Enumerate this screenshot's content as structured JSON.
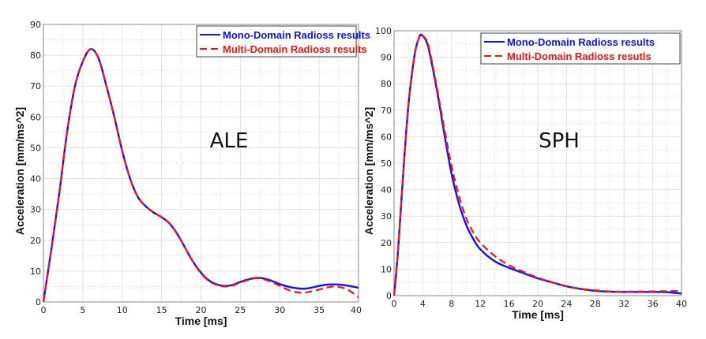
{
  "chart_data": [
    {
      "type": "line",
      "annotation": "ALE",
      "xlabel": "Time [ms]",
      "ylabel": "Acceleration [mm/ms^2]",
      "xlim": [
        0,
        40
      ],
      "ylim": [
        0,
        90
      ],
      "xticks": [
        0,
        5,
        10,
        15,
        20,
        25,
        30,
        35,
        40
      ],
      "yticks": [
        0,
        10,
        20,
        30,
        40,
        50,
        60,
        70,
        80,
        90
      ],
      "grid": true,
      "legend_position": "top-right",
      "series": [
        {
          "name": "Mono-Domain Radioss results",
          "color": "#1010ff",
          "style": "solid",
          "x": [
            0,
            1,
            2,
            3,
            4,
            5,
            6,
            7,
            8,
            9,
            10,
            11,
            12,
            13,
            14,
            15,
            16,
            17,
            18,
            19,
            20,
            21,
            22,
            23,
            24,
            25,
            26,
            27,
            28,
            29,
            30,
            31,
            32,
            33,
            34,
            35,
            36,
            37,
            38,
            39,
            40
          ],
          "y": [
            0,
            17,
            35,
            55,
            70,
            78,
            82,
            79,
            70,
            60,
            49,
            40,
            34,
            31,
            29,
            27.5,
            25.5,
            22,
            17.5,
            13,
            9.5,
            7,
            5.7,
            5.2,
            5.5,
            6.5,
            7.3,
            7.8,
            7.6,
            6.8,
            5.8,
            5,
            4.5,
            4.3,
            4.6,
            5.2,
            5.6,
            5.7,
            5.5,
            5.1,
            4.6
          ]
        },
        {
          "name": "Multi-Domain Radioss results",
          "color": "#ff1010",
          "style": "dashed",
          "x": [
            0,
            1,
            2,
            3,
            4,
            5,
            6,
            7,
            8,
            9,
            10,
            11,
            12,
            13,
            14,
            15,
            16,
            17,
            18,
            19,
            20,
            21,
            22,
            23,
            24,
            25,
            26,
            27,
            28,
            29,
            30,
            31,
            32,
            33,
            34,
            35,
            36,
            37,
            38,
            39,
            40
          ],
          "y": [
            0,
            17,
            35,
            55,
            70,
            78,
            82,
            79,
            70,
            60,
            49,
            40,
            34,
            31,
            29,
            27.5,
            25.5,
            22,
            17.5,
            13,
            9.3,
            6.8,
            5.5,
            5,
            5.3,
            6.3,
            7.1,
            7.7,
            7.3,
            6.4,
            5.2,
            4,
            3.2,
            3,
            3.4,
            4,
            4.7,
            5,
            4.6,
            3.4,
            1.5
          ]
        }
      ]
    },
    {
      "type": "line",
      "annotation": "SPH",
      "xlabel": "Time [ms]",
      "ylabel": "Acceleration [mm/ms^2]",
      "xlim": [
        0,
        40
      ],
      "ylim": [
        0,
        100
      ],
      "xticks": [
        0,
        4,
        8,
        12,
        16,
        20,
        24,
        28,
        32,
        36,
        40
      ],
      "yticks": [
        0,
        10,
        20,
        30,
        40,
        50,
        60,
        70,
        80,
        90,
        100
      ],
      "grid": true,
      "legend_position": "top-right",
      "series": [
        {
          "name": "Mono-Domain Radioss results",
          "color": "#1010ff",
          "style": "solid",
          "x": [
            0,
            0.5,
            1,
            1.5,
            2,
            2.5,
            3,
            3.5,
            3.8,
            4.5,
            5,
            6,
            7,
            8,
            9,
            10,
            11,
            12,
            14,
            16,
            18,
            20,
            22,
            24,
            26,
            28,
            30,
            32,
            36,
            38,
            40
          ],
          "y": [
            0,
            15,
            35,
            55,
            72,
            84,
            93,
            97.5,
            98.5,
            96,
            91,
            77,
            61,
            46,
            35,
            27,
            21.5,
            17.5,
            13,
            10.5,
            8.5,
            6.5,
            5,
            3.5,
            2.5,
            1.8,
            1.5,
            1.4,
            1.4,
            1.3,
            0.8
          ]
        },
        {
          "name": "Multi-Domain Radioss resutls",
          "color": "#ff1010",
          "style": "dashed",
          "x": [
            0,
            0.5,
            1,
            1.5,
            2,
            2.5,
            3,
            3.5,
            3.8,
            4.5,
            5,
            6,
            7,
            8,
            9,
            10,
            11,
            12,
            14,
            16,
            18,
            20,
            22,
            24,
            26,
            28,
            30,
            32,
            36,
            38,
            40
          ],
          "y": [
            0,
            15,
            35,
            55,
            72,
            84,
            93,
            97.5,
            98.5,
            96.5,
            92,
            78,
            63,
            49,
            38,
            29.5,
            24,
            20,
            15,
            11.5,
            9,
            6.8,
            5,
            3.6,
            2.6,
            2,
            1.6,
            1.5,
            1.6,
            1.7,
            1.8
          ]
        }
      ]
    }
  ]
}
